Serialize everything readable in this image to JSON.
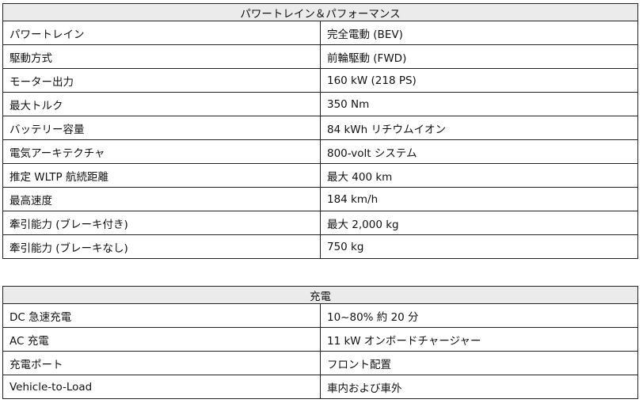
{
  "tables": [
    {
      "title": "パワートレイン＆パフォーマンス",
      "rows": [
        [
          "パワートレイン",
          "完全電動 (BEV)"
        ],
        [
          "駆動方式",
          "前輪駆動 (FWD)"
        ],
        [
          "モーター出力",
          "160 kW (218 PS)"
        ],
        [
          "最大トルク",
          "350 Nm"
        ],
        [
          "バッテリー容量",
          "84 kWh リチウムイオン"
        ],
        [
          "電気アーキテクチャ",
          "800-volt システム"
        ],
        [
          "推定 WLTP 航続距離",
          "最大 400 km"
        ],
        [
          "最高速度",
          "184 km/h"
        ],
        [
          "牽引能力 (ブレーキ付き)",
          "最大 2,000 kg"
        ],
        [
          "牽引能力 (ブレーキなし)",
          "750 kg"
        ]
      ]
    },
    {
      "title": "充電",
      "rows": [
        [
          "DC 急速充電",
          "10~80% 約 20 分"
        ],
        [
          "AC 充電",
          "11 kW オンボードチャージャー"
        ],
        [
          "充電ポート",
          "フロント配置"
        ],
        [
          "Vehicle-to-Load",
          "車内および車外"
        ]
      ]
    }
  ]
}
